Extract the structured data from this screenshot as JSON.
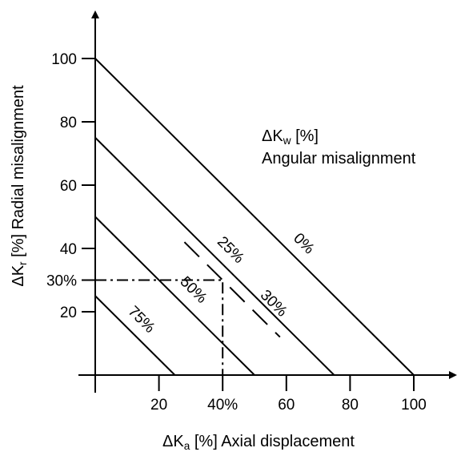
{
  "chart_data": {
    "type": "line",
    "xlabel": {
      "symbol": "ΔK",
      "sub": "a",
      "rest": " [%]  Axial displacement"
    },
    "ylabel": {
      "symbol": "ΔK",
      "sub": "r",
      "rest": " [%]  Radial misalignment"
    },
    "xlim": [
      0,
      100
    ],
    "ylim": [
      0,
      100
    ],
    "xticks": [
      {
        "value": 20,
        "label": "20"
      },
      {
        "value": 40,
        "label": "40%"
      },
      {
        "value": 60,
        "label": "60"
      },
      {
        "value": 80,
        "label": "80"
      },
      {
        "value": 100,
        "label": "100"
      }
    ],
    "yticks": [
      {
        "value": 20,
        "label": "20"
      },
      {
        "value": 30,
        "label": "30%"
      },
      {
        "value": 40,
        "label": "40"
      },
      {
        "value": 60,
        "label": "60"
      },
      {
        "value": 80,
        "label": "80"
      },
      {
        "value": 100,
        "label": "100"
      }
    ],
    "legend": {
      "symbol": "ΔK",
      "sub": "w",
      "rest": " [%]",
      "line2": "Angular misalignment"
    },
    "series": [
      {
        "name": "0%",
        "points": [
          [
            0,
            100
          ],
          [
            100,
            0
          ]
        ]
      },
      {
        "name": "25%",
        "points": [
          [
            0,
            75
          ],
          [
            75,
            0
          ]
        ]
      },
      {
        "name": "50%",
        "points": [
          [
            0,
            50
          ],
          [
            50,
            0
          ]
        ]
      },
      {
        "name": "75%",
        "points": [
          [
            0,
            25
          ],
          [
            25,
            0
          ]
        ]
      }
    ],
    "example": {
      "x": 40,
      "y": 30,
      "label": "30%",
      "points": [
        [
          28,
          42
        ],
        [
          58,
          12
        ]
      ]
    }
  }
}
